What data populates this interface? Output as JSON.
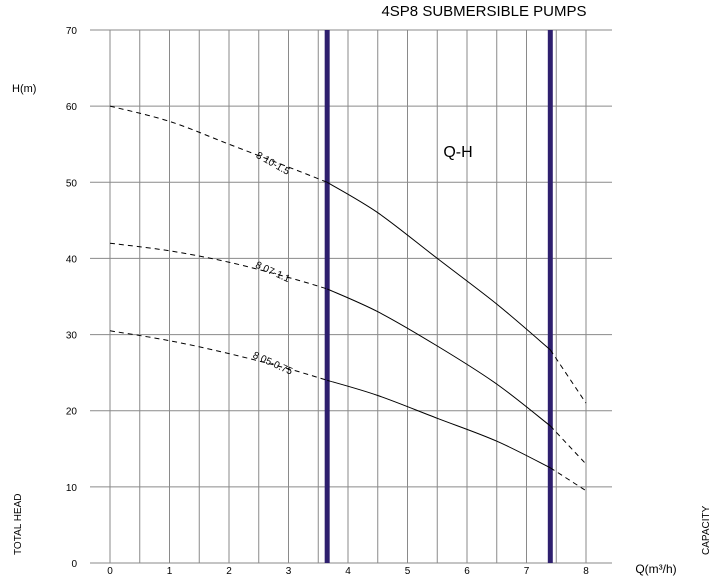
{
  "title": "4SP8 SUBMERSIBLE PUMPS",
  "chart_data": {
    "type": "line",
    "annotation": "Q-H",
    "ylabel": "H(m)",
    "ylabel_side": "TOTAL HEAD",
    "xlabel": "Q(m³/h)",
    "xlabel_side": "CAPACITY",
    "xlim": [
      0,
      8
    ],
    "ylim": [
      0,
      70
    ],
    "x_ticks": [
      0,
      1,
      2,
      3,
      4,
      5,
      6,
      7,
      8
    ],
    "y_ticks": [
      0,
      10,
      20,
      30,
      40,
      50,
      60,
      70
    ],
    "grid": true,
    "operating_range_x": [
      3.65,
      7.4
    ],
    "series": [
      {
        "name": "8 10-1.5",
        "x": [
          0,
          1,
          2,
          3,
          3.65,
          4.5,
          5.5,
          6.5,
          7.4,
          8
        ],
        "y": [
          60,
          58,
          55,
          52,
          50,
          46,
          40,
          34,
          28,
          21
        ]
      },
      {
        "name": "8 07-1.1",
        "x": [
          0,
          1,
          2,
          3,
          3.65,
          4.5,
          5.5,
          6.5,
          7.4,
          8
        ],
        "y": [
          42,
          41,
          39.5,
          37.5,
          36,
          33,
          28.5,
          23.5,
          18,
          13
        ]
      },
      {
        "name": "8 05-0.75",
        "x": [
          0,
          1,
          2,
          3,
          3.65,
          4.5,
          5.5,
          6.5,
          7.4,
          8
        ],
        "y": [
          30.5,
          29.2,
          27.5,
          25.5,
          24,
          22,
          19,
          16,
          12.5,
          9.5
        ]
      }
    ]
  }
}
